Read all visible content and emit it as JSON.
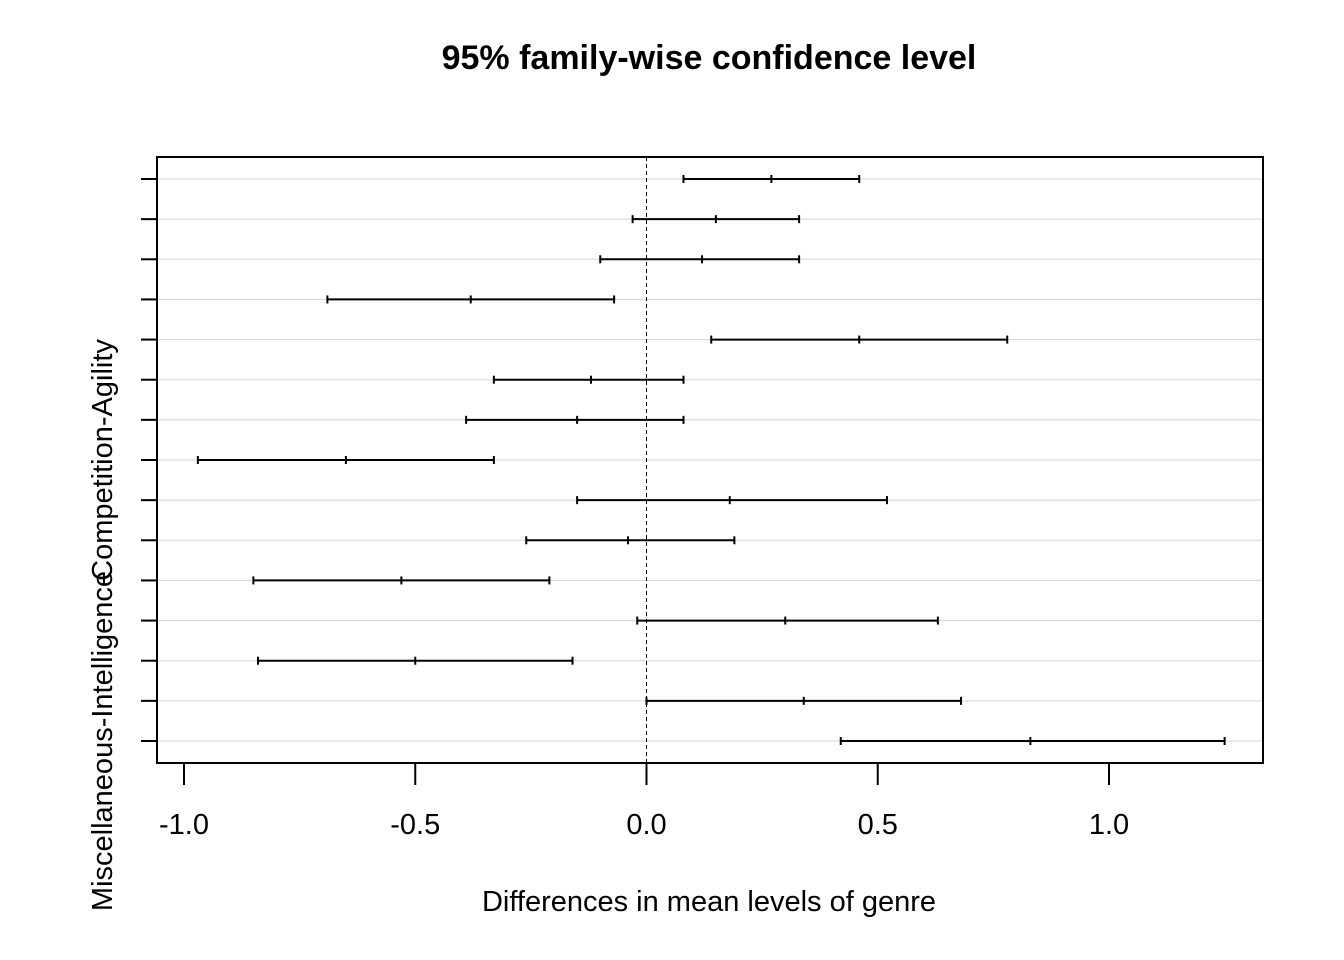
{
  "chart_data": {
    "type": "interval",
    "title": "95% family-wise confidence level",
    "xlabel": "Differences in mean levels of genre",
    "ylabel": "",
    "xlim": [
      -1.0,
      1.25
    ],
    "xticks": [
      {
        "value": -1.0,
        "label": "-1.0"
      },
      {
        "value": -0.5,
        "label": "-0.5"
      },
      {
        "value": 0.0,
        "label": "0.0"
      },
      {
        "value": 0.5,
        "label": "0.5"
      },
      {
        "value": 1.0,
        "label": "1.0"
      }
    ],
    "reference_line": 0,
    "grid": "horizontal",
    "comparisons": [
      {
        "label": "",
        "lwr": 0.08,
        "diff": 0.27,
        "upr": 0.46
      },
      {
        "label": "",
        "lwr": -0.03,
        "diff": 0.15,
        "upr": 0.33
      },
      {
        "label": "",
        "lwr": -0.1,
        "diff": 0.12,
        "upr": 0.33
      },
      {
        "label": "",
        "lwr": -0.69,
        "diff": -0.38,
        "upr": -0.07
      },
      {
        "label": "",
        "lwr": 0.14,
        "diff": 0.46,
        "upr": 0.78
      },
      {
        "label": "",
        "lwr": -0.33,
        "diff": -0.12,
        "upr": 0.08
      },
      {
        "label": "",
        "lwr": -0.39,
        "diff": -0.15,
        "upr": 0.08
      },
      {
        "label": "Competition-Agility",
        "lwr": -0.97,
        "diff": -0.65,
        "upr": -0.33
      },
      {
        "label": "",
        "lwr": -0.15,
        "diff": 0.18,
        "upr": 0.52
      },
      {
        "label": "",
        "lwr": -0.26,
        "diff": -0.04,
        "upr": 0.19
      },
      {
        "label": "",
        "lwr": -0.85,
        "diff": -0.53,
        "upr": -0.21
      },
      {
        "label": "",
        "lwr": -0.02,
        "diff": 0.3,
        "upr": 0.63
      },
      {
        "label": "",
        "lwr": -0.84,
        "diff": -0.5,
        "upr": -0.16
      },
      {
        "label": "",
        "lwr": 0.0,
        "diff": 0.34,
        "upr": 0.68
      },
      {
        "label": "Miscellaneous-Intelligence",
        "lwr": 0.42,
        "diff": 0.83,
        "upr": 1.25
      }
    ]
  }
}
